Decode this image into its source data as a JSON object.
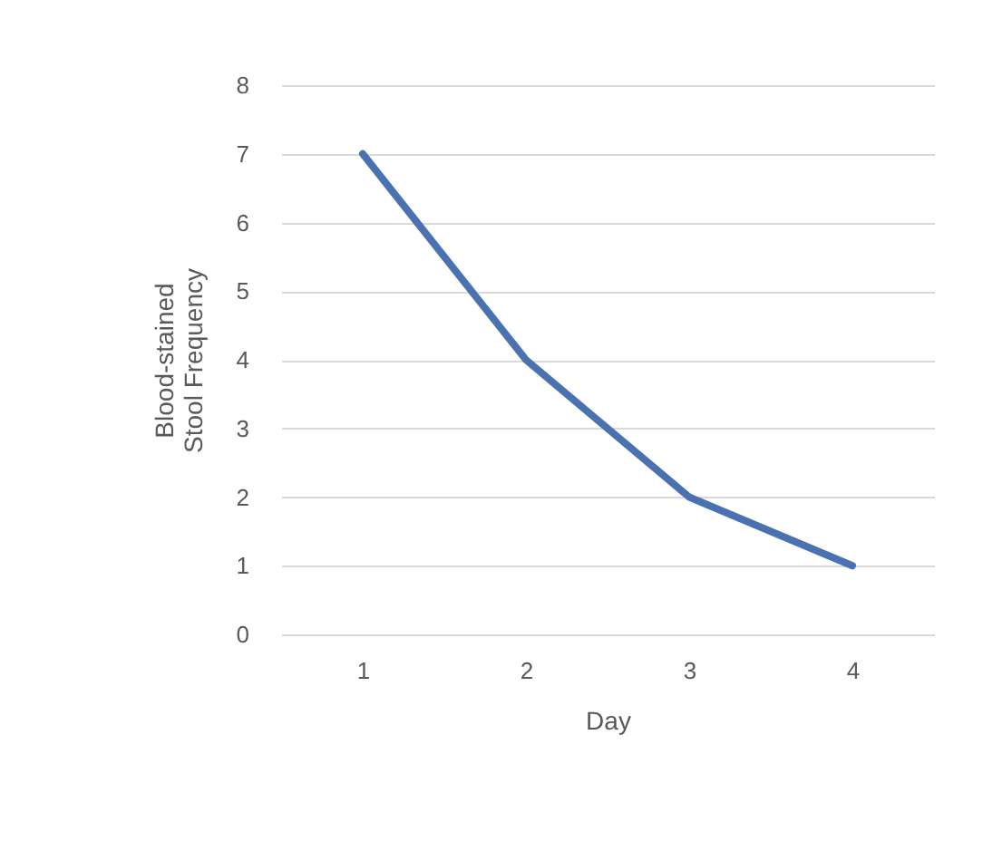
{
  "chart_data": {
    "type": "line",
    "xlabel": "Day",
    "ylabel": "Blood-stained\nStool Frequency",
    "categories": [
      "1",
      "2",
      "3",
      "4"
    ],
    "series": [
      {
        "color": "#4a72b0",
        "values": [
          7,
          4,
          2,
          1
        ]
      }
    ],
    "ylim": [
      0,
      8
    ],
    "yticks": [
      0,
      1,
      2,
      3,
      4,
      5,
      6,
      7,
      8
    ],
    "grid": "y",
    "legend": false,
    "marker": "none",
    "line_style": "solid"
  }
}
